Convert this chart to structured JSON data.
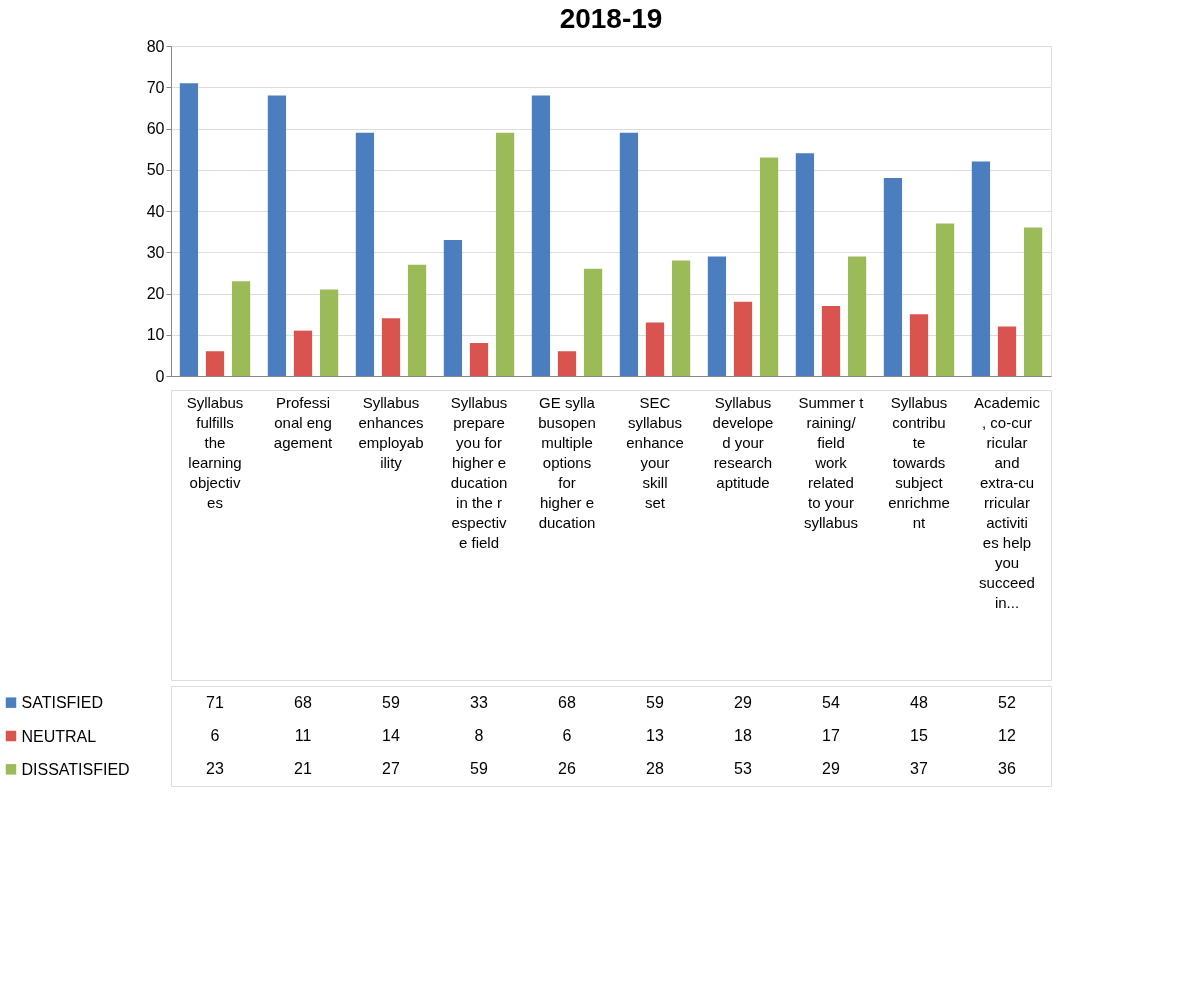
{
  "chart_data": {
    "type": "bar",
    "title": "2018-19",
    "categories": [
      "Syllabus fulfills the learning objectives",
      "Professional engagement",
      "Syllabus enhances employability",
      "Syllabus prepare you for higher education in the respective field",
      "GE syllabusopen multiple options for higher education",
      "SEC syllabus enhance your skill set",
      "Syllabus developed your research aptitude",
      "Summer training/field work related to your syllabus",
      "Syllabus contribute towards subject enrichment",
      "Academic, co-curricular and extra-curricular activities help you succeed in..."
    ],
    "series": [
      {
        "name": "SATISFIED",
        "color": "#4a7ebf",
        "values": [
          71,
          68,
          59,
          33,
          68,
          59,
          29,
          54,
          48,
          52
        ]
      },
      {
        "name": "NEUTRAL",
        "color": "#d9534f",
        "values": [
          6,
          11,
          14,
          8,
          6,
          13,
          18,
          17,
          15,
          12
        ]
      },
      {
        "name": "DISSATISFIED",
        "color": "#9bbb59",
        "values": [
          23,
          21,
          27,
          59,
          26,
          28,
          53,
          29,
          37,
          36
        ]
      }
    ],
    "ylim": [
      0,
      80
    ],
    "yticks": [
      0,
      10,
      20,
      30,
      40,
      50,
      60,
      70,
      80
    ],
    "grid": "y",
    "legend": "bottom",
    "data_labels": true
  }
}
